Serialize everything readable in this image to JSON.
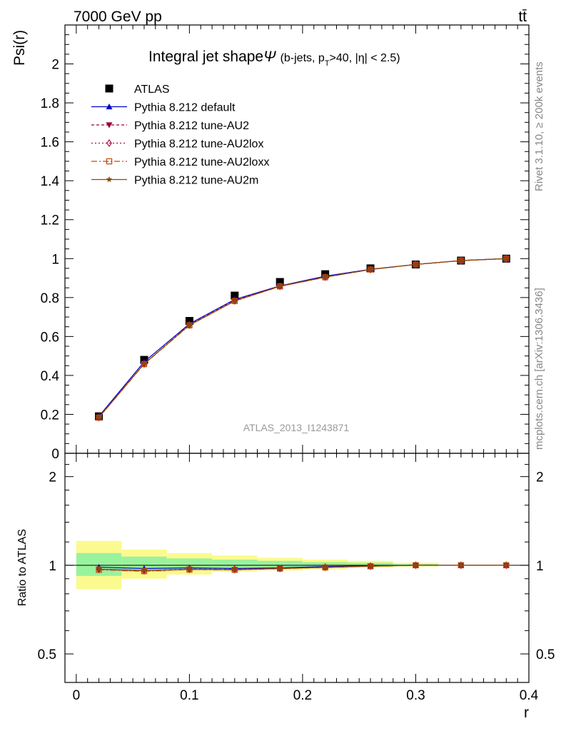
{
  "header": {
    "energy_label": "7000 GeV pp",
    "process_label": "tt̄"
  },
  "side_labels": {
    "rivet": "Rivet 3.1.10, ≥ 200k events",
    "mcplots": "mcplots.cern.ch [arXiv:1306.3436]"
  },
  "chart_data": [
    {
      "type": "line",
      "title": "Integral jet shape",
      "title_symbol": "Ψ",
      "title_cuts": "(b-jets, p",
      "title_cuts_sub": "T",
      "title_cuts_rest": ">40, |η| < 2.5)",
      "watermark": "ATLAS_2013_I1243871",
      "ylabel": "Psi(r)",
      "xlabel": "r",
      "xlim": [
        -0.01,
        0.4
      ],
      "ylim": [
        0,
        2.2
      ],
      "yticks": [
        "0",
        "0.2",
        "0.4",
        "0.6",
        "0.8",
        "1",
        "1.2",
        "1.4",
        "1.6",
        "1.8",
        "2"
      ],
      "x": [
        0.02,
        0.06,
        0.1,
        0.14,
        0.18,
        0.22,
        0.26,
        0.3,
        0.34,
        0.38
      ],
      "series": [
        {
          "name": "ATLAS",
          "marker": "square",
          "color": "#000000",
          "values": [
            0.19,
            0.48,
            0.68,
            0.81,
            0.88,
            0.92,
            0.95,
            0.97,
            0.99,
            1.0
          ]
        },
        {
          "name": "Pythia 8.212 default",
          "marker": "triangle",
          "color": "#0000cc",
          "dash": "solid",
          "values": [
            0.19,
            0.47,
            0.665,
            0.79,
            0.86,
            0.91,
            0.945,
            0.97,
            0.99,
            1.0
          ]
        },
        {
          "name": "Pythia 8.212 tune-AU2",
          "marker": "triangle-down",
          "color": "#99003b",
          "dash": "4,3",
          "values": [
            0.185,
            0.46,
            0.66,
            0.785,
            0.86,
            0.905,
            0.945,
            0.97,
            0.99,
            1.0
          ]
        },
        {
          "name": "Pythia 8.212 tune-AU2lox",
          "marker": "diamond-open",
          "color": "#b0103b",
          "dash": "2,3",
          "values": [
            0.184,
            0.459,
            0.659,
            0.783,
            0.858,
            0.905,
            0.944,
            0.97,
            0.99,
            1.0
          ]
        },
        {
          "name": "Pythia 8.212 tune-AU2loxx",
          "marker": "square-open",
          "color": "#c04a0c",
          "dash": "8,3,2,3",
          "values": [
            0.183,
            0.458,
            0.657,
            0.782,
            0.857,
            0.904,
            0.944,
            0.97,
            0.99,
            1.0
          ]
        },
        {
          "name": "Pythia 8.212 tune-AU2m",
          "marker": "star",
          "color": "#8a4b08",
          "dash": "solid",
          "values": [
            0.185,
            0.46,
            0.658,
            0.782,
            0.858,
            0.905,
            0.944,
            0.97,
            0.99,
            1.0
          ]
        }
      ]
    },
    {
      "type": "line",
      "ylabel": "Ratio to ATLAS",
      "xlabel": "r",
      "xlim": [
        -0.01,
        0.4
      ],
      "ylim_log": [
        0.4,
        2.4
      ],
      "yticks": [
        "0.5",
        "1",
        "2"
      ],
      "xticks": [
        "0",
        "0.1",
        "0.2",
        "0.3",
        "0.4"
      ],
      "bands": {
        "x_edges": [
          0.0,
          0.04,
          0.08,
          0.12,
          0.16,
          0.2,
          0.24,
          0.28,
          0.32
        ],
        "inner_low": [
          0.92,
          0.95,
          0.965,
          0.975,
          0.98,
          0.985,
          0.99,
          0.995
        ],
        "inner_high": [
          1.1,
          1.07,
          1.055,
          1.045,
          1.035,
          1.025,
          1.02,
          1.01
        ],
        "outer_low": [
          0.83,
          0.9,
          0.93,
          0.95,
          0.96,
          0.97,
          0.98,
          0.99
        ],
        "outer_high": [
          1.21,
          1.13,
          1.1,
          1.08,
          1.06,
          1.045,
          1.035,
          1.02
        ],
        "inner_color": "#99f29c",
        "outer_color": "#fbfa8e"
      },
      "series": [
        {
          "name": "Pythia 8.212 default",
          "values": [
            0.985,
            0.975,
            0.98,
            0.975,
            0.98,
            0.99,
            0.995,
            1.0,
            1.0,
            1.0
          ]
        },
        {
          "name": "Pythia 8.212 tune-AU2",
          "values": [
            0.97,
            0.96,
            0.97,
            0.968,
            0.977,
            0.985,
            0.993,
            1.0,
            1.0,
            1.0
          ]
        },
        {
          "name": "Pythia 8.212 tune-AU2lox",
          "values": [
            0.968,
            0.958,
            0.969,
            0.967,
            0.975,
            0.984,
            0.993,
            1.0,
            1.0,
            1.0
          ]
        },
        {
          "name": "Pythia 8.212 tune-AU2loxx",
          "values": [
            0.965,
            0.955,
            0.967,
            0.965,
            0.974,
            0.983,
            0.992,
            1.0,
            1.0,
            1.0
          ]
        },
        {
          "name": "Pythia 8.212 tune-AU2m",
          "values": [
            0.97,
            0.96,
            0.968,
            0.966,
            0.975,
            0.984,
            0.993,
            1.0,
            1.0,
            1.0
          ]
        }
      ]
    }
  ]
}
